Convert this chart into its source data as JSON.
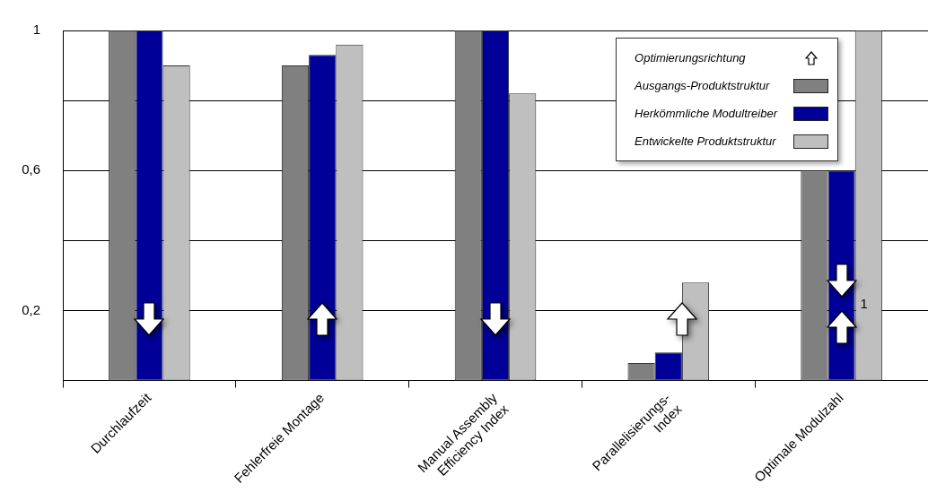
{
  "chart_data": {
    "type": "bar",
    "categories": [
      "Durchlaufzeit",
      "Fehlerfreie Montage",
      "Manual Assembly\nEfficiency Index",
      "Parallelisierungs-\nIndex",
      "Optimale Modulzahl"
    ],
    "series": [
      {
        "name": "Ausgangs-Produktstruktur",
        "color": "#808080",
        "values": [
          1,
          0.9,
          1,
          0.05,
          0.6
        ]
      },
      {
        "name": "Herkömmliche Modultreiber",
        "color": "#000099",
        "values": [
          1,
          0.93,
          1,
          0.08,
          0.6
        ]
      },
      {
        "name": "Entwickelte Produktstruktur",
        "color": "#bfbfbf",
        "values": [
          0.9,
          0.96,
          0.82,
          0.28,
          1
        ]
      }
    ],
    "ylim": [
      0,
      1
    ],
    "yticks": [
      {
        "value": 0.2,
        "label": "0,2"
      },
      {
        "value": 0.4,
        "label": null
      },
      {
        "value": 0.6,
        "label": "0,6"
      },
      {
        "value": 0.8,
        "label": null
      },
      {
        "value": 1,
        "label": "1"
      }
    ],
    "grid": "y",
    "legend": "top right",
    "annotations": [
      "Optimierungsrichtung",
      "1"
    ]
  }
}
